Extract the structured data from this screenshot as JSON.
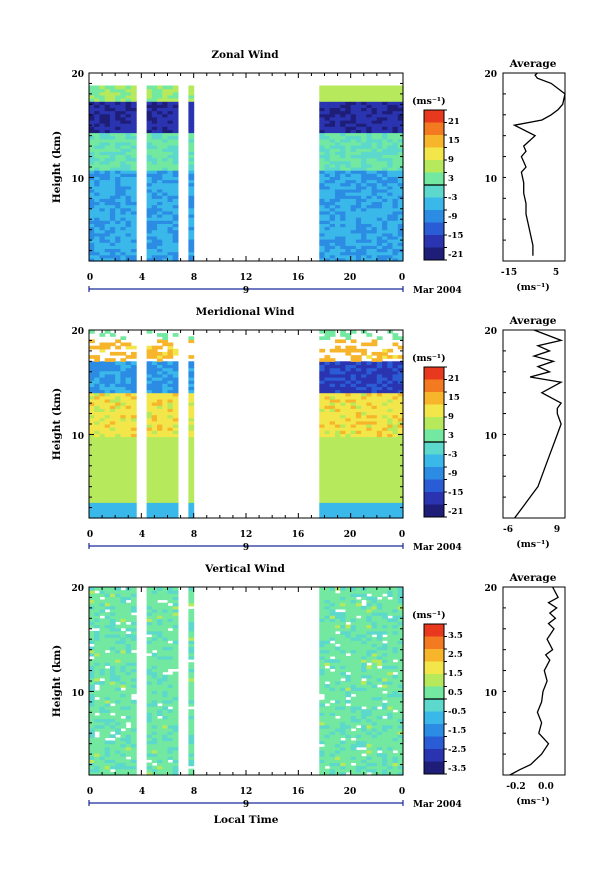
{
  "xaxis": {
    "label": "Local Time",
    "ticks": [
      "0",
      "4",
      "8",
      "12",
      "16",
      "20",
      "0"
    ],
    "date_day": "9",
    "date_month": "Mar 2004"
  },
  "panels": [
    {
      "key": "zonal",
      "title": "Zonal Wind",
      "ylabel": "Height (km)",
      "yticks": [
        "10",
        "20"
      ],
      "unit_label": "(ms⁻¹)",
      "colorbar_ticks": [
        "21",
        "15",
        "9",
        "3",
        "-3",
        "-9",
        "-15",
        "-21"
      ],
      "avg_title": "Average",
      "avg_xticks": [
        "-15",
        "5"
      ],
      "avg_yticks": [
        "10",
        "20"
      ],
      "avg_unit": "(ms⁻¹)"
    },
    {
      "key": "meridional",
      "title": "Meridional Wind",
      "ylabel": "Height (km)",
      "yticks": [
        "10",
        "20"
      ],
      "unit_label": "(ms⁻¹)",
      "colorbar_ticks": [
        "21",
        "15",
        "9",
        "3",
        "-3",
        "-9",
        "-15",
        "-21"
      ],
      "avg_title": "Average",
      "avg_xticks": [
        "-6",
        "9"
      ],
      "avg_yticks": [
        "10",
        "20"
      ],
      "avg_unit": "(ms⁻¹)"
    },
    {
      "key": "vertical",
      "title": "Vertical Wind",
      "ylabel": "Height (km)",
      "yticks": [
        "10",
        "20"
      ],
      "unit_label": "(ms⁻¹)",
      "colorbar_ticks": [
        "3.5",
        "2.5",
        "1.5",
        "0.5",
        "-0.5",
        "-1.5",
        "-2.5",
        "-3.5"
      ],
      "avg_title": "Average",
      "avg_xticks": [
        "-0.2",
        "0.0"
      ],
      "avg_yticks": [
        "10",
        "20"
      ],
      "avg_unit": "(ms⁻¹)"
    }
  ],
  "colors": {
    "colorbar_top_to_bottom": [
      "#e8381e",
      "#f47a22",
      "#f7b52c",
      "#f2e64a",
      "#b6ea5c",
      "#72e8a0",
      "#5cd8cc",
      "#3ab8ea",
      "#2c8ce4",
      "#2a5cd6",
      "#2a34b0",
      "#1e1e78"
    ]
  },
  "chart_data": [
    {
      "type": "heatmap",
      "title": "Zonal Wind",
      "ylabel": "Height (km)",
      "xlabel": "Local Time",
      "x_range_hours": [
        0,
        24
      ],
      "ylim": [
        2,
        20
      ],
      "colorbar_range": [
        -24,
        24
      ],
      "valid_time_ranges_hours": [
        [
          0,
          3.6
        ],
        [
          4.4,
          6.8
        ],
        [
          7.6,
          8.0
        ],
        [
          17.6,
          24.0
        ]
      ],
      "typical_values": {
        "low_troposphere_2_10km": -6,
        "mid_10_14km": 0,
        "near_tropopause_14_17km": -18,
        "above_17km": 3
      }
    },
    {
      "type": "line",
      "title": "Average",
      "parent": "Zonal Wind",
      "xlim": [
        -20,
        7
      ],
      "ylim": [
        2,
        20
      ],
      "x": [
        -7,
        -7,
        -8,
        -9,
        -10,
        -10,
        -11,
        -11,
        -12,
        -10,
        -12,
        -10,
        -11,
        -6,
        -15,
        -3,
        1,
        4,
        6,
        7,
        1,
        -5,
        -6,
        -5
      ],
      "y": [
        2.5,
        3.5,
        4.5,
        5.5,
        6.5,
        7.5,
        8.5,
        9.5,
        10.5,
        11,
        12,
        12.5,
        13,
        14,
        15,
        15.5,
        16,
        16.5,
        17,
        18,
        19,
        19.5,
        19.8,
        20
      ]
    },
    {
      "type": "heatmap",
      "title": "Meridional Wind",
      "ylabel": "Height (km)",
      "xlabel": "Local Time",
      "x_range_hours": [
        0,
        24
      ],
      "ylim": [
        2,
        20
      ],
      "colorbar_range": [
        -24,
        24
      ],
      "valid_time_ranges_hours": [
        [
          0,
          3.6
        ],
        [
          4.4,
          6.8
        ],
        [
          7.6,
          8.0
        ],
        [
          17.6,
          24.0
        ]
      ],
      "typical_values": {
        "low_troposphere_2_10km": 6,
        "mid_10_14km": 9,
        "near_tropopause_14_17km": -9,
        "above_17km": 0
      }
    },
    {
      "type": "line",
      "title": "Average",
      "parent": "Meridional Wind",
      "xlim": [
        -6,
        10
      ],
      "ylim": [
        2,
        20
      ],
      "x": [
        -3,
        -1,
        1,
        3,
        4,
        5,
        6,
        7,
        8,
        9,
        8,
        8,
        9,
        4,
        9,
        1,
        6,
        3,
        7,
        2,
        6,
        3,
        9,
        2
      ],
      "y": [
        2,
        3,
        4,
        5,
        6,
        7,
        8,
        9,
        10,
        11,
        12,
        12.5,
        13,
        14,
        15,
        15.5,
        16,
        16.5,
        17,
        17.5,
        18,
        18.5,
        19,
        20
      ]
    },
    {
      "type": "heatmap",
      "title": "Vertical Wind",
      "ylabel": "Height (km)",
      "xlabel": "Local Time",
      "x_range_hours": [
        0,
        24
      ],
      "ylim": [
        2,
        20
      ],
      "colorbar_range": [
        -4,
        4
      ],
      "valid_time_ranges_hours": [
        [
          0,
          3.6
        ],
        [
          4.4,
          6.8
        ],
        [
          7.6,
          8.0
        ],
        [
          17.6,
          24.0
        ]
      ],
      "typical_values": {
        "everywhere": 0.5
      }
    },
    {
      "type": "line",
      "title": "Average",
      "parent": "Vertical Wind",
      "xlim": [
        -0.3,
        0.15
      ],
      "ylim": [
        2,
        20
      ],
      "x": [
        -0.25,
        -0.18,
        -0.1,
        -0.02,
        0.03,
        -0.04,
        -0.02,
        -0.05,
        -0.02,
        -0.01,
        0.02,
        0.0,
        0.04,
        0.01,
        0.06,
        0.02,
        0.07,
        0.03,
        0.08,
        0.04,
        0.09,
        0.03,
        0.1,
        0.06
      ],
      "y": [
        2,
        2.5,
        3,
        4,
        5,
        6,
        7,
        8,
        9,
        10,
        11,
        12,
        13,
        13.5,
        14,
        15,
        16,
        16.5,
        17,
        17.5,
        18,
        18.5,
        19,
        20
      ]
    }
  ]
}
